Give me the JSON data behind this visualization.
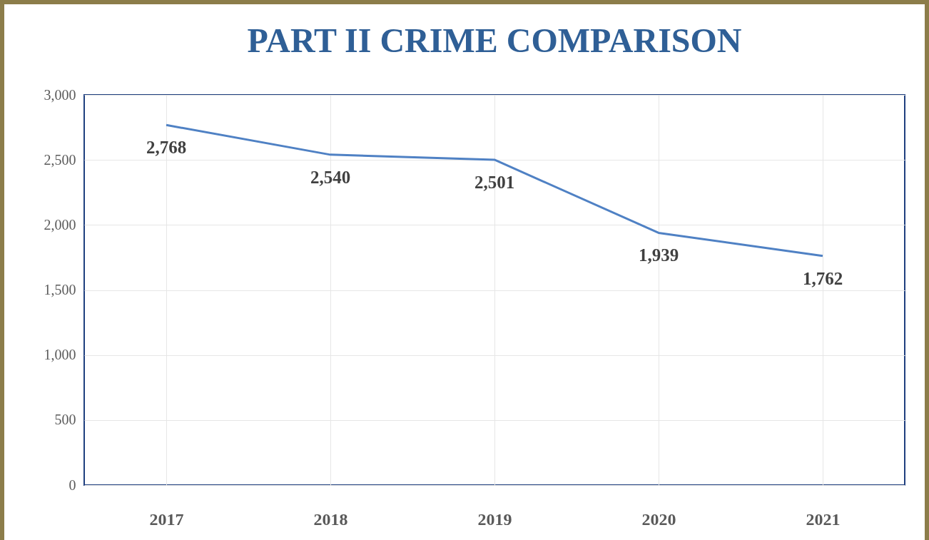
{
  "chart_data": {
    "type": "line",
    "title": "PART II CRIME COMPARISON",
    "categories": [
      "2017",
      "2018",
      "2019",
      "2020",
      "2021"
    ],
    "series": [
      {
        "color": "#4f81c4",
        "values": [
          2768,
          2540,
          2501,
          1939,
          1762
        ],
        "value_labels": [
          "2,768",
          "2,540",
          "2,501",
          "1,939",
          "1,762"
        ]
      }
    ],
    "ylim": [
      0,
      3000
    ],
    "yticks": [
      0,
      {
        "value": 500,
        "label": "500"
      },
      {
        "value": 1000,
        "label": "1,000"
      },
      {
        "value": 1500,
        "label": "1,500"
      },
      {
        "value": 2000,
        "label": "2,000"
      },
      {
        "value": 2500,
        "label": "2,500"
      },
      {
        "value": 3000,
        "label": "3,000"
      }
    ],
    "grid": true,
    "marker": "none",
    "line_style": "solid",
    "legend": false
  }
}
